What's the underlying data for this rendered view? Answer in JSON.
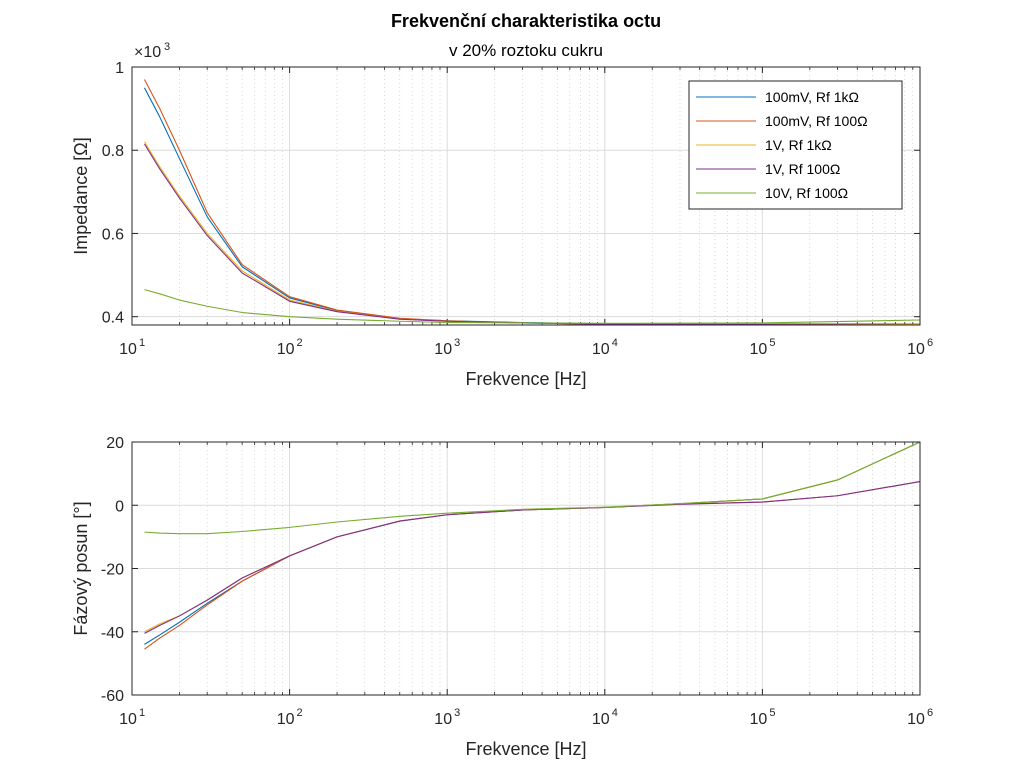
{
  "figure": {
    "title": "Frekvenční charakteristika octu",
    "subtitle": "v 20% roztoku cukru"
  },
  "legend": {
    "location": "top-right of upper plot",
    "entries": [
      {
        "label": "100mV, Rf 1kΩ",
        "color": "#0072BD"
      },
      {
        "label": "100mV, Rf 100Ω",
        "color": "#D95319"
      },
      {
        "label": "1V, Rf 1kΩ",
        "color": "#EDB120"
      },
      {
        "label": "1V, Rf 100Ω",
        "color": "#7E2F8E"
      },
      {
        "label": "10V, Rf 100Ω",
        "color": "#77AC30"
      }
    ]
  },
  "chart_data": [
    {
      "type": "line",
      "id": "impedance",
      "xlabel": "Frekvence [Hz]",
      "ylabel": "Impedance [Ω]",
      "x_scale": "log",
      "xlim": [
        10,
        1000000
      ],
      "ylim": [
        0.38,
        1.0
      ],
      "y_multiplier_label": "×10",
      "y_multiplier_exp": "3",
      "grid": true,
      "minor_grid": true,
      "x_ticks": [
        {
          "base": "10",
          "exp": "1"
        },
        {
          "base": "10",
          "exp": "2"
        },
        {
          "base": "10",
          "exp": "3"
        },
        {
          "base": "10",
          "exp": "4"
        },
        {
          "base": "10",
          "exp": "5"
        },
        {
          "base": "10",
          "exp": "6"
        }
      ],
      "y_ticks": [
        "0.4",
        "0.6",
        "0.8",
        "1"
      ],
      "x": [
        12,
        15,
        20,
        30,
        50,
        100,
        200,
        500,
        1000,
        3000,
        10000,
        100000,
        1000000
      ],
      "series": [
        {
          "name": "100mV, Rf 1kΩ",
          "color": "#0072BD",
          "values": [
            0.95,
            0.88,
            0.78,
            0.64,
            0.52,
            0.445,
            0.415,
            0.395,
            0.39,
            0.386,
            0.383,
            0.383,
            0.382
          ]
        },
        {
          "name": "100mV, Rf 100Ω",
          "color": "#D95319",
          "values": [
            0.97,
            0.9,
            0.8,
            0.65,
            0.525,
            0.448,
            0.416,
            0.396,
            0.39,
            0.385,
            0.382,
            0.381,
            0.378
          ]
        },
        {
          "name": "1V, Rf 1kΩ",
          "color": "#EDB120",
          "values": [
            0.82,
            0.76,
            0.69,
            0.6,
            0.51,
            0.44,
            0.413,
            0.394,
            0.389,
            0.385,
            0.382,
            0.382,
            0.381
          ]
        },
        {
          "name": "1V, Rf 100Ω",
          "color": "#7E2F8E",
          "values": [
            0.815,
            0.755,
            0.685,
            0.595,
            0.505,
            0.437,
            0.412,
            0.394,
            0.389,
            0.385,
            0.382,
            0.381,
            0.38
          ]
        },
        {
          "name": "10V, Rf 100Ω",
          "color": "#77AC30",
          "values": [
            0.465,
            0.455,
            0.44,
            0.425,
            0.41,
            0.4,
            0.394,
            0.389,
            0.386,
            0.385,
            0.384,
            0.385,
            0.392
          ]
        }
      ]
    },
    {
      "type": "line",
      "id": "phase",
      "xlabel": "Frekvence [Hz]",
      "ylabel": "Fázový posun [°]",
      "x_scale": "log",
      "xlim": [
        10,
        1000000
      ],
      "ylim": [
        -60,
        20
      ],
      "grid": true,
      "minor_grid": true,
      "x_ticks": [
        {
          "base": "10",
          "exp": "1"
        },
        {
          "base": "10",
          "exp": "2"
        },
        {
          "base": "10",
          "exp": "3"
        },
        {
          "base": "10",
          "exp": "4"
        },
        {
          "base": "10",
          "exp": "5"
        },
        {
          "base": "10",
          "exp": "6"
        }
      ],
      "y_ticks": [
        "-60",
        "-40",
        "-20",
        "0",
        "20"
      ],
      "x": [
        12,
        15,
        20,
        30,
        50,
        100,
        200,
        500,
        1000,
        3000,
        10000,
        30000,
        100000,
        300000,
        1000000
      ],
      "series": [
        {
          "name": "100mV, Rf 1kΩ",
          "color": "#0072BD",
          "values": [
            -44,
            -41,
            -37,
            -31,
            -24,
            -16,
            -10,
            -5,
            -3,
            -1.5,
            -0.7,
            0.5,
            2,
            8,
            20
          ]
        },
        {
          "name": "100mV, Rf 100Ω",
          "color": "#D95319",
          "values": [
            -45.5,
            -42,
            -38,
            -31.5,
            -24,
            -16,
            -10,
            -5,
            -3,
            -1.5,
            -0.7,
            0.4,
            1,
            3,
            7.5
          ]
        },
        {
          "name": "1V, Rf 1kΩ",
          "color": "#EDB120",
          "values": [
            -40,
            -37.5,
            -35,
            -30,
            -23,
            -16,
            -10,
            -5,
            -3,
            -1.5,
            -0.7,
            0.5,
            2,
            8,
            20
          ]
        },
        {
          "name": "1V, Rf 100Ω",
          "color": "#7E2F8E",
          "values": [
            -40.5,
            -38,
            -35,
            -30,
            -23,
            -16,
            -10,
            -5,
            -3,
            -1.5,
            -0.7,
            0.3,
            1,
            3,
            7.5
          ]
        },
        {
          "name": "10V, Rf 100Ω",
          "color": "#77AC30",
          "values": [
            -8.5,
            -8.8,
            -9,
            -9,
            -8.3,
            -7,
            -5.3,
            -3.5,
            -2.5,
            -1.3,
            -0.6,
            0.5,
            2,
            8,
            20
          ]
        }
      ]
    }
  ]
}
